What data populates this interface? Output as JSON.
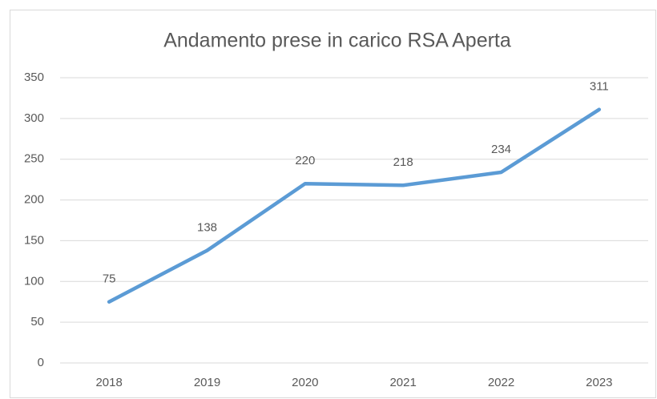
{
  "chart_data": {
    "type": "line",
    "title": "Andamento prese in carico RSA Aperta",
    "categories": [
      "2018",
      "2019",
      "2020",
      "2021",
      "2022",
      "2023"
    ],
    "values": [
      75,
      138,
      220,
      218,
      234,
      311
    ],
    "color": "#5b9bd5",
    "ylim": [
      0,
      350
    ],
    "yticks": [
      0,
      50,
      100,
      150,
      200,
      250,
      300,
      350
    ],
    "grid": true
  }
}
